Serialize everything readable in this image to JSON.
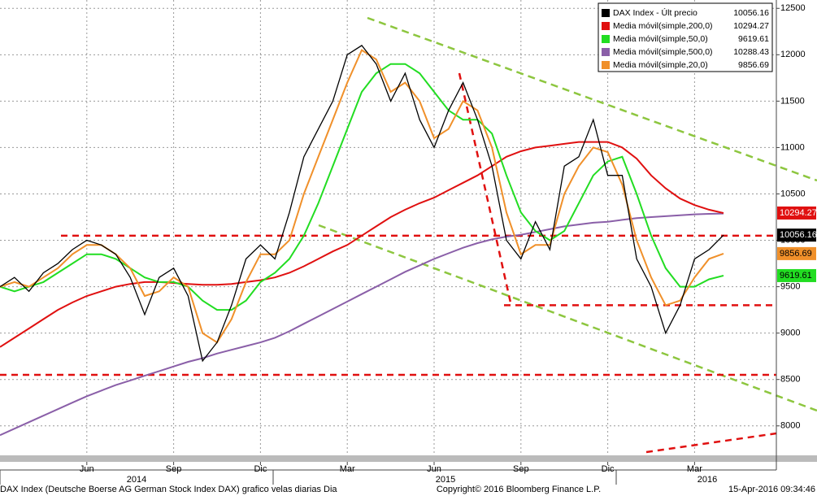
{
  "chart_data": {
    "type": "line",
    "categories": [
      null,
      null,
      null,
      null,
      null,
      null,
      "Jun",
      null,
      null,
      null,
      null,
      null,
      "Sep",
      null,
      null,
      null,
      null,
      null,
      "Dic",
      null,
      null,
      null,
      null,
      null,
      "Mar",
      null,
      null,
      null,
      null,
      null,
      "Jun",
      null,
      null,
      null,
      null,
      null,
      "Sep",
      null,
      null,
      null,
      null,
      null,
      "Dic",
      null,
      null,
      null,
      null,
      null,
      "Mar",
      null,
      null
    ],
    "years": [
      "2014",
      "2015",
      "2016"
    ],
    "series": [
      {
        "name": "DAX Index - Últ precio",
        "color": "#000000",
        "values": [
          9500,
          9600,
          9450,
          9650,
          9750,
          9900,
          10000,
          9950,
          9850,
          9600,
          9200,
          9600,
          9700,
          9400,
          8700,
          8900,
          9300,
          9800,
          9950,
          9800,
          10300,
          10900,
          11200,
          11500,
          12000,
          12100,
          11900,
          11500,
          11800,
          11300,
          11000,
          11400,
          11700,
          11300,
          10800,
          10000,
          9800,
          10200,
          9900,
          10800,
          10900,
          11300,
          10700,
          10700,
          9800,
          9500,
          9000,
          9300,
          9800,
          9900,
          10056.16
        ]
      },
      {
        "name": "Media móvil(simple,200,0)",
        "color": "#e01010",
        "values": [
          8850,
          8950,
          9050,
          9150,
          9250,
          9330,
          9400,
          9450,
          9500,
          9530,
          9550,
          9550,
          9540,
          9530,
          9520,
          9520,
          9530,
          9550,
          9570,
          9600,
          9650,
          9720,
          9800,
          9880,
          9950,
          10050,
          10150,
          10250,
          10330,
          10400,
          10460,
          10540,
          10620,
          10700,
          10800,
          10900,
          10960,
          11000,
          11020,
          11040,
          11060,
          11060,
          11060,
          11000,
          10880,
          10700,
          10560,
          10450,
          10380,
          10330,
          10294.27
        ]
      },
      {
        "name": "Media móvil(simple,50,0)",
        "color": "#22dd22",
        "values": [
          9500,
          9450,
          9500,
          9550,
          9650,
          9750,
          9850,
          9850,
          9800,
          9700,
          9600,
          9550,
          9550,
          9500,
          9350,
          9250,
          9250,
          9350,
          9550,
          9650,
          9800,
          10050,
          10400,
          10800,
          11200,
          11600,
          11800,
          11900,
          11900,
          11800,
          11600,
          11400,
          11300,
          11300,
          11150,
          10700,
          10300,
          10100,
          10000,
          10100,
          10400,
          10700,
          10850,
          10900,
          10500,
          10050,
          9700,
          9500,
          9500,
          9580,
          9619.61
        ]
      },
      {
        "name": "Media móvil(simple,500,0)",
        "color": "#8a5fa8",
        "values": [
          7900,
          7970,
          8040,
          8110,
          8180,
          8250,
          8320,
          8380,
          8440,
          8490,
          8540,
          8590,
          8640,
          8690,
          8730,
          8780,
          8820,
          8860,
          8900,
          8950,
          9020,
          9100,
          9180,
          9260,
          9340,
          9420,
          9500,
          9580,
          9660,
          9730,
          9800,
          9860,
          9920,
          9970,
          10010,
          10040,
          10060,
          10090,
          10120,
          10150,
          10170,
          10190,
          10200,
          10220,
          10240,
          10250,
          10260,
          10270,
          10280,
          10285,
          10288.43
        ]
      },
      {
        "name": "Media móvil(simple,20,0)",
        "color": "#f0902a",
        "values": [
          9500,
          9550,
          9500,
          9600,
          9700,
          9850,
          9950,
          9950,
          9850,
          9700,
          9400,
          9450,
          9600,
          9500,
          9000,
          8900,
          9150,
          9550,
          9850,
          9850,
          10000,
          10500,
          10900,
          11300,
          11700,
          12050,
          11950,
          11600,
          11700,
          11500,
          11100,
          11200,
          11500,
          11400,
          11000,
          10300,
          9850,
          9950,
          9950,
          10500,
          10800,
          11000,
          10950,
          10600,
          10000,
          9600,
          9300,
          9350,
          9600,
          9800,
          9856.69
        ]
      }
    ],
    "hlines": [
      10050,
      9300,
      8550
    ],
    "hline_color": "#e01010",
    "ylim": [
      7700,
      12590
    ],
    "yticks": [
      8000,
      8500,
      9000,
      9500,
      10000,
      10500,
      11000,
      11500,
      12000,
      12500
    ],
    "grid": true,
    "footer_left": "DAX Index (Deutsche Boerse AG German Stock Index DAX) grafico velas diarias  Dia",
    "footer_center": "Copyright© 2016 Bloomberg Finance L.P.",
    "footer_right": "15-Apr-2016 09:34:46"
  }
}
